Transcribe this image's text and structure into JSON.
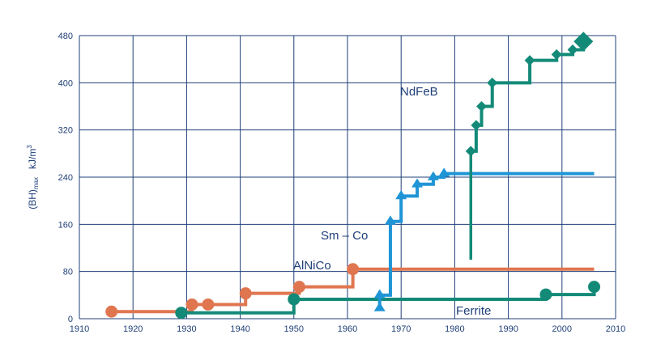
{
  "chart_data": {
    "type": "line",
    "title": "",
    "xlabel": "",
    "ylabel": "(BH)max kJ/m3",
    "ylabel_parts": {
      "main": "(BH)",
      "sub": "max",
      "unit": "kJ/m",
      "sup": "3"
    },
    "xlim": [
      1910,
      2010
    ],
    "ylim": [
      0,
      480
    ],
    "x_ticks": [
      1910,
      1920,
      1930,
      1940,
      1950,
      1960,
      1970,
      1980,
      1990,
      2000,
      2010
    ],
    "y_ticks": [
      0,
      80,
      160,
      240,
      320,
      400,
      480
    ],
    "grid": true,
    "legend": "inline labels",
    "series": [
      {
        "name": "AlNiCo",
        "color": "#e07650",
        "marker": "circle",
        "points": [
          [
            1916,
            12
          ],
          [
            1931,
            24
          ],
          [
            1934,
            24
          ],
          [
            1941,
            43
          ],
          [
            1951,
            54
          ],
          [
            1961,
            84
          ]
        ],
        "line_end_x": 2006
      },
      {
        "name": "Ferrite",
        "color": "#138a78",
        "marker": "circle",
        "points": [
          [
            1929,
            10
          ],
          [
            1950,
            33
          ],
          [
            1997,
            41
          ],
          [
            2006,
            54
          ]
        ],
        "line_end_x": 2006
      },
      {
        "name": "Sm – Co",
        "color": "#1f95d6",
        "marker": "triangle",
        "points": [
          [
            1966,
            40
          ],
          [
            1968,
            165
          ],
          [
            1970,
            208
          ],
          [
            1973,
            228
          ],
          [
            1976,
            240
          ],
          [
            1978,
            246
          ]
        ],
        "extra_marker": [
          1966,
          18
        ],
        "line_end_x": 2006
      },
      {
        "name": "NdFeB",
        "color": "#138a78",
        "marker": "diamond",
        "points": [
          [
            1983,
            284
          ],
          [
            1984,
            328
          ],
          [
            1985,
            360
          ],
          [
            1987,
            400
          ],
          [
            1994,
            438
          ],
          [
            1999,
            448
          ],
          [
            2002,
            456
          ],
          [
            2004,
            470
          ]
        ],
        "drop_line_y": 100
      }
    ]
  }
}
